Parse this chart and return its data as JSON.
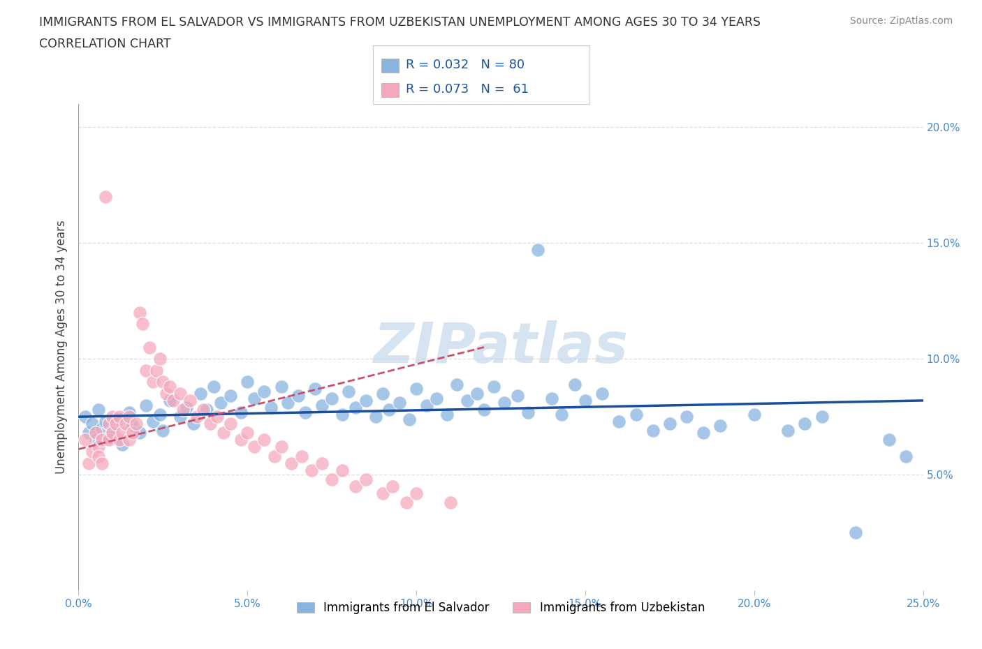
{
  "title_line1": "IMMIGRANTS FROM EL SALVADOR VS IMMIGRANTS FROM UZBEKISTAN UNEMPLOYMENT AMONG AGES 30 TO 34 YEARS",
  "title_line2": "CORRELATION CHART",
  "source": "Source: ZipAtlas.com",
  "ylabel": "Unemployment Among Ages 30 to 34 years",
  "xlim": [
    0.0,
    0.25
  ],
  "ylim": [
    0.0,
    0.21
  ],
  "el_salvador_color": "#88b4df",
  "uzbekistan_color": "#f5a8bc",
  "el_salvador_line_color": "#1a4f9c",
  "uzbekistan_line_color": "#c8506a",
  "R_el_salvador": 0.032,
  "N_el_salvador": 80,
  "R_uzbekistan": 0.073,
  "N_uzbekistan": 61,
  "watermark": "ZIPatlas",
  "watermark_color": "#c5d8ec",
  "background_color": "#ffffff",
  "grid_color": "#dddddd",
  "tick_color": "#4488cc",
  "el_salvador_x": [
    0.002,
    0.003,
    0.004,
    0.005,
    0.006,
    0.007,
    0.008,
    0.009,
    0.01,
    0.012,
    0.013,
    0.015,
    0.016,
    0.018,
    0.02,
    0.022,
    0.024,
    0.025,
    0.027,
    0.03,
    0.032,
    0.034,
    0.036,
    0.038,
    0.04,
    0.042,
    0.045,
    0.048,
    0.05,
    0.052,
    0.055,
    0.057,
    0.06,
    0.062,
    0.065,
    0.067,
    0.07,
    0.072,
    0.075,
    0.078,
    0.08,
    0.082,
    0.085,
    0.088,
    0.09,
    0.092,
    0.095,
    0.098,
    0.1,
    0.103,
    0.106,
    0.109,
    0.112,
    0.115,
    0.118,
    0.12,
    0.123,
    0.126,
    0.13,
    0.133,
    0.136,
    0.14,
    0.143,
    0.147,
    0.15,
    0.155,
    0.16,
    0.165,
    0.17,
    0.175,
    0.18,
    0.185,
    0.19,
    0.2,
    0.21,
    0.215,
    0.22,
    0.23,
    0.24,
    0.245
  ],
  "el_salvador_y": [
    0.075,
    0.068,
    0.072,
    0.065,
    0.078,
    0.07,
    0.073,
    0.066,
    0.069,
    0.074,
    0.063,
    0.077,
    0.071,
    0.068,
    0.08,
    0.073,
    0.076,
    0.069,
    0.082,
    0.075,
    0.079,
    0.072,
    0.085,
    0.078,
    0.088,
    0.081,
    0.084,
    0.077,
    0.09,
    0.083,
    0.086,
    0.079,
    0.088,
    0.081,
    0.084,
    0.077,
    0.087,
    0.08,
    0.083,
    0.076,
    0.086,
    0.079,
    0.082,
    0.075,
    0.085,
    0.078,
    0.081,
    0.074,
    0.087,
    0.08,
    0.083,
    0.076,
    0.089,
    0.082,
    0.085,
    0.078,
    0.088,
    0.081,
    0.084,
    0.077,
    0.147,
    0.083,
    0.076,
    0.089,
    0.082,
    0.085,
    0.073,
    0.076,
    0.069,
    0.072,
    0.075,
    0.068,
    0.071,
    0.076,
    0.069,
    0.072,
    0.075,
    0.025,
    0.065,
    0.058
  ],
  "uzbekistan_x": [
    0.002,
    0.003,
    0.004,
    0.005,
    0.006,
    0.006,
    0.007,
    0.007,
    0.008,
    0.009,
    0.009,
    0.01,
    0.01,
    0.011,
    0.012,
    0.012,
    0.013,
    0.014,
    0.015,
    0.015,
    0.016,
    0.017,
    0.018,
    0.019,
    0.02,
    0.021,
    0.022,
    0.023,
    0.024,
    0.025,
    0.026,
    0.027,
    0.028,
    0.03,
    0.031,
    0.033,
    0.035,
    0.037,
    0.039,
    0.041,
    0.043,
    0.045,
    0.048,
    0.05,
    0.052,
    0.055,
    0.058,
    0.06,
    0.063,
    0.066,
    0.069,
    0.072,
    0.075,
    0.078,
    0.082,
    0.085,
    0.09,
    0.093,
    0.097,
    0.1,
    0.11
  ],
  "uzbekistan_y": [
    0.065,
    0.055,
    0.06,
    0.068,
    0.062,
    0.058,
    0.065,
    0.055,
    0.17,
    0.072,
    0.065,
    0.075,
    0.068,
    0.072,
    0.065,
    0.075,
    0.068,
    0.072,
    0.065,
    0.075,
    0.068,
    0.072,
    0.12,
    0.115,
    0.095,
    0.105,
    0.09,
    0.095,
    0.1,
    0.09,
    0.085,
    0.088,
    0.082,
    0.085,
    0.078,
    0.082,
    0.075,
    0.078,
    0.072,
    0.075,
    0.068,
    0.072,
    0.065,
    0.068,
    0.062,
    0.065,
    0.058,
    0.062,
    0.055,
    0.058,
    0.052,
    0.055,
    0.048,
    0.052,
    0.045,
    0.048,
    0.042,
    0.045,
    0.038,
    0.042,
    0.038
  ]
}
